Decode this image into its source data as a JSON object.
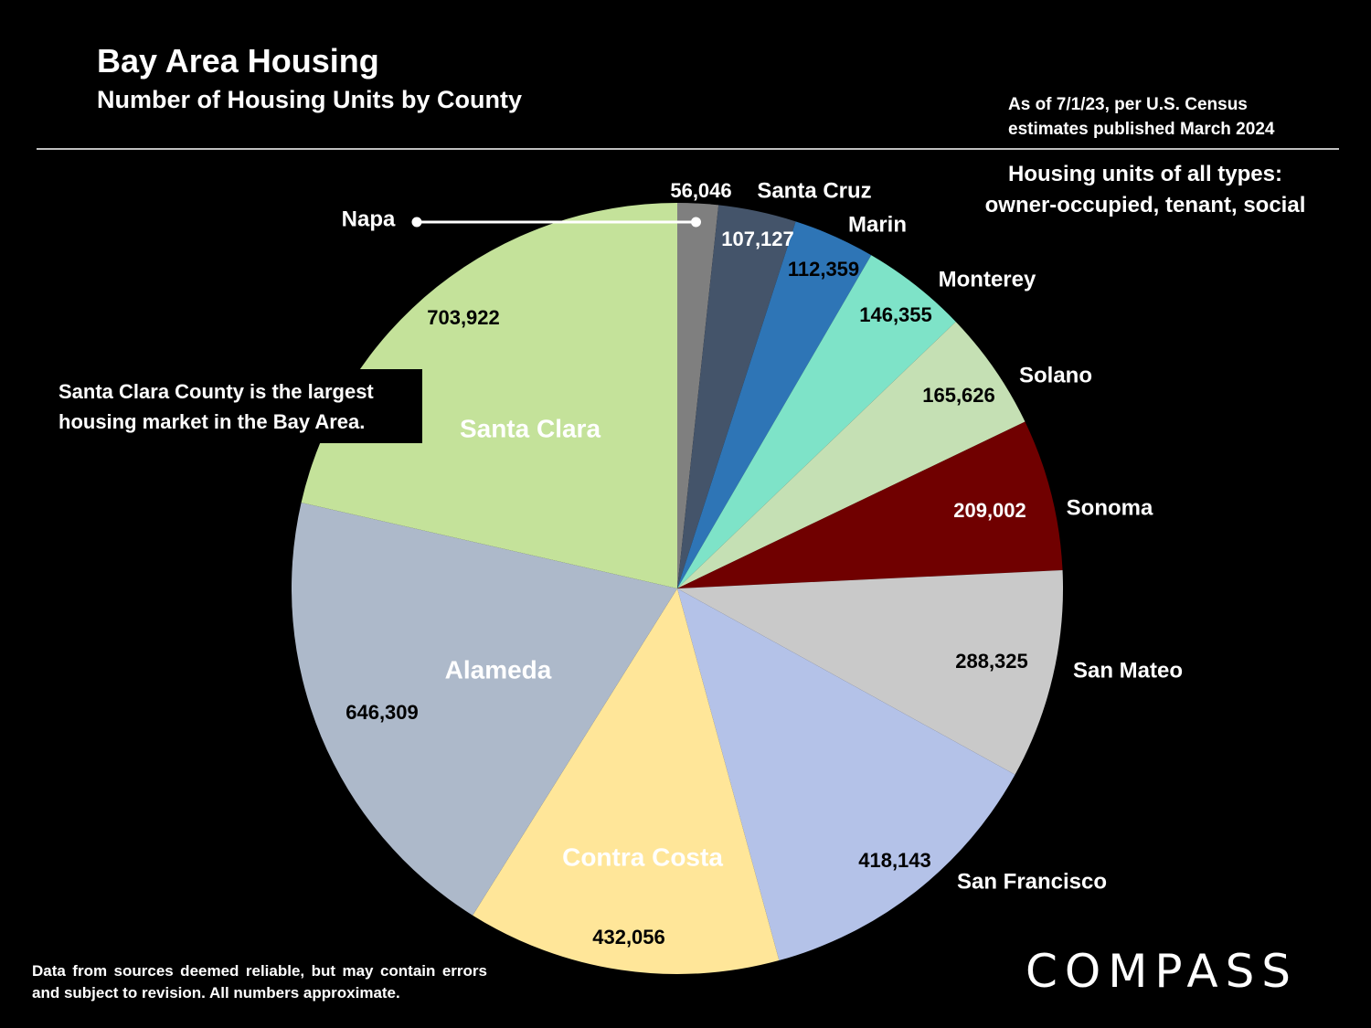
{
  "header": {
    "title": "Bay Area Housing",
    "subtitle": "Number of Housing Units by County",
    "as_of_line1": "As of 7/1/23, per U.S. Census",
    "as_of_line2": "estimates published March 2024"
  },
  "notes": {
    "types_line1": "Housing units of all types:",
    "types_line2": "owner-occupied, tenant, social",
    "callout_line1": "Santa Clara County is the largest",
    "callout_line2": "housing market in the Bay Area.",
    "disclaimer": "Data from sources deemed reliable, but may contain errors and subject to revision. All numbers approximate."
  },
  "brand": {
    "logo_text": "COMPASS"
  },
  "chart_data": {
    "type": "pie",
    "start": "12 o'clock",
    "direction": "clockwise",
    "slices": [
      {
        "label": "Napa",
        "value": 56046,
        "value_label": "56,046",
        "color": "#7f7f7f"
      },
      {
        "label": "Santa Cruz",
        "value": 107127,
        "value_label": "107,127",
        "color": "#44546a"
      },
      {
        "label": "Marin",
        "value": 112359,
        "value_label": "112,359",
        "color": "#2e75b6"
      },
      {
        "label": "Monterey",
        "value": 146355,
        "value_label": "146,355",
        "color": "#7ee3c8"
      },
      {
        "label": "Solano",
        "value": 165626,
        "value_label": "165,626",
        "color": "#c5e0b4"
      },
      {
        "label": "Sonoma",
        "value": 209002,
        "value_label": "209,002",
        "color": "#700000"
      },
      {
        "label": "San Mateo",
        "value": 288325,
        "value_label": "288,325",
        "color": "#c9c9c9"
      },
      {
        "label": "San Francisco",
        "value": 418143,
        "value_label": "418,143",
        "color": "#b4c2e8"
      },
      {
        "label": "Contra Costa",
        "value": 432056,
        "value_label": "432,056",
        "color": "#ffe699"
      },
      {
        "label": "Alameda",
        "value": 646309,
        "value_label": "646,309",
        "color": "#adb9ca"
      },
      {
        "label": "Santa Clara",
        "value": 703922,
        "value_label": "703,922",
        "color": "#c4e29a"
      }
    ]
  }
}
